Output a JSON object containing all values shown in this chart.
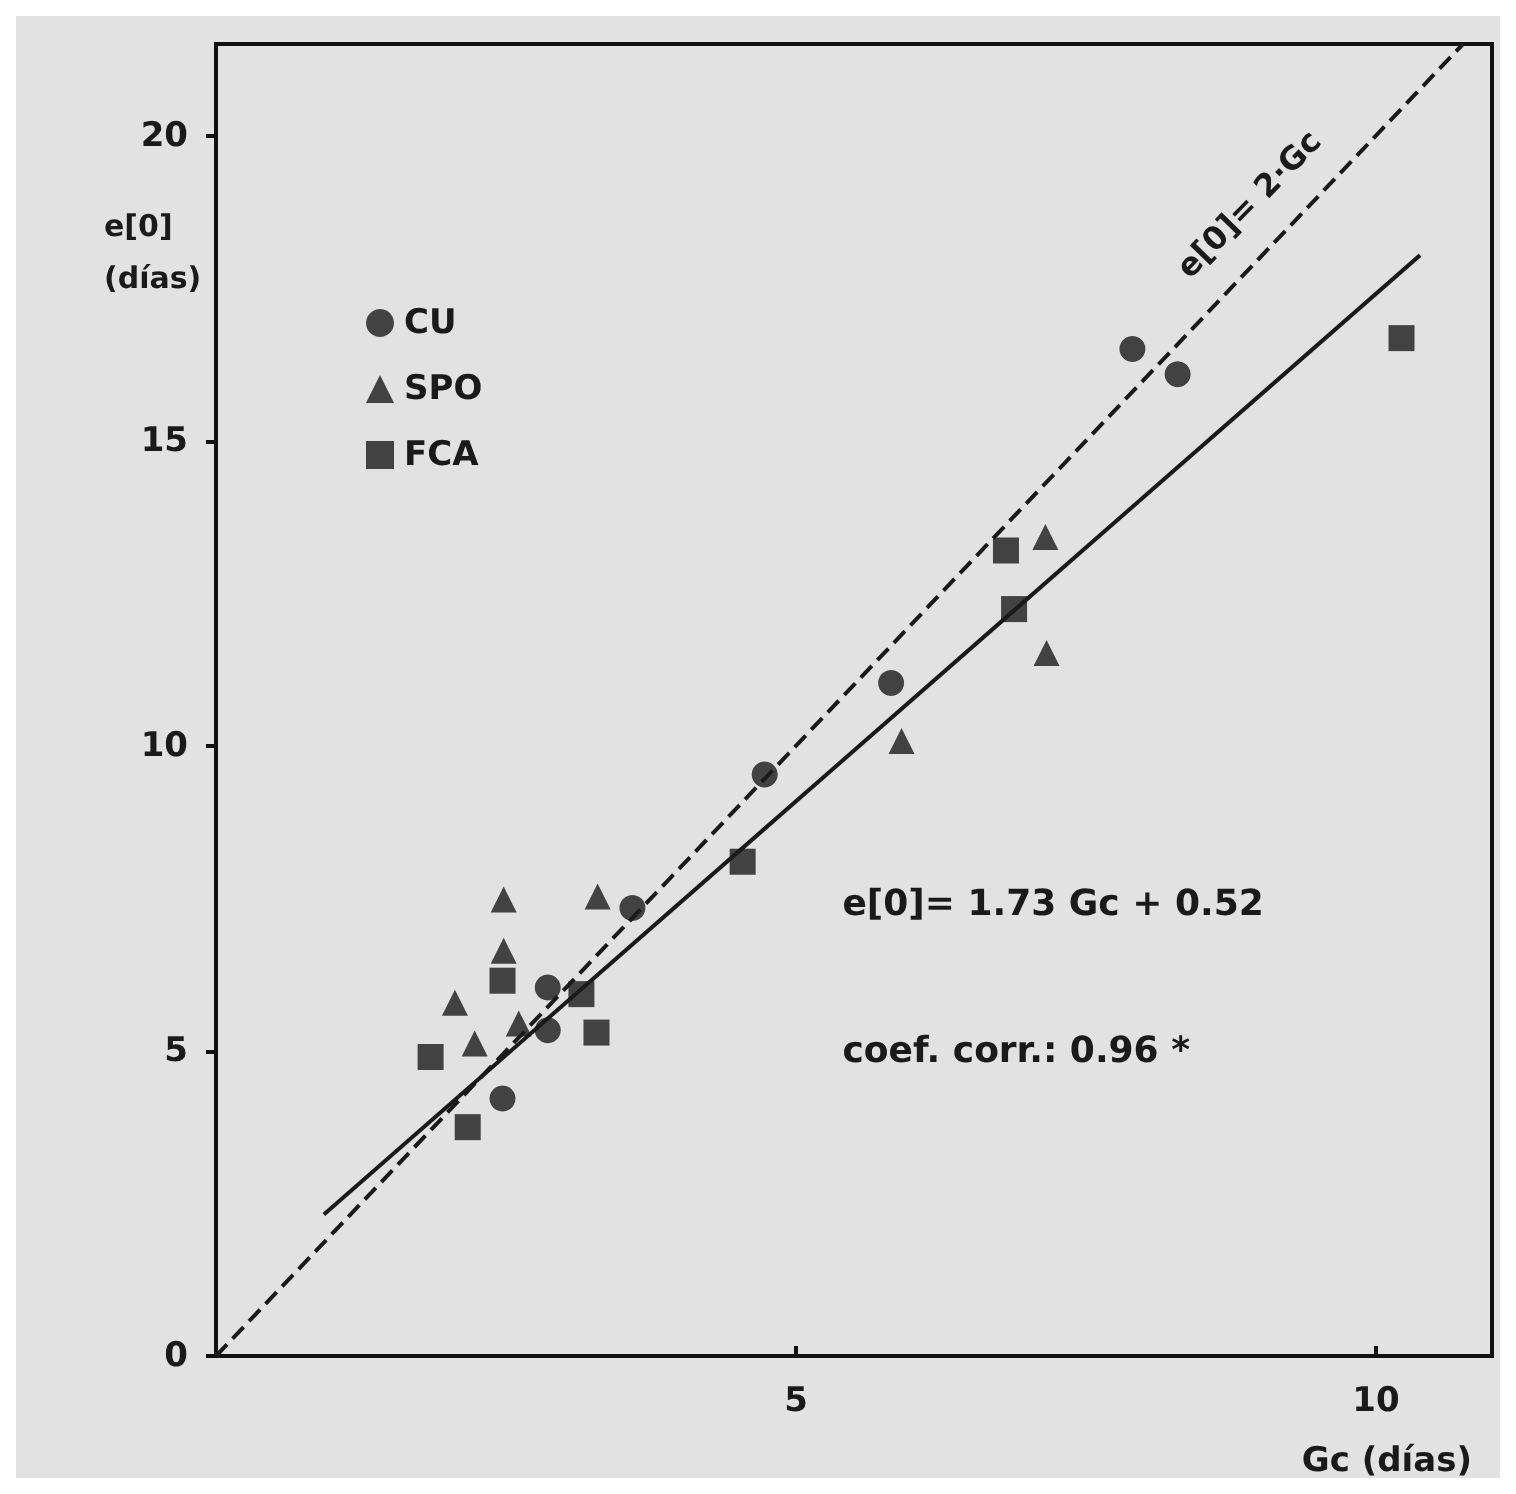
{
  "chart_data": {
    "type": "scatter",
    "xlabel": "Gc (días)",
    "ylabel": "e[0]\n(días)",
    "xlim": [
      0,
      11
    ],
    "ylim": [
      0,
      21.5
    ],
    "xticks": [
      5,
      10
    ],
    "yticks": [
      0,
      5,
      10,
      15,
      20
    ],
    "grid": false,
    "legend": "top left",
    "series": [
      {
        "name": "CU",
        "color": "#1a1a1a",
        "marker": "circle",
        "x": [
          2.47,
          2.86,
          2.86,
          3.59,
          4.73,
          5.82,
          7.9,
          8.29
        ],
        "values": [
          4.22,
          5.34,
          6.04,
          7.34,
          9.53,
          11.03,
          16.5,
          16.09
        ]
      },
      {
        "name": "SPO",
        "color": "#1a1a1a",
        "marker": "triangle",
        "x": [
          2.48,
          3.29,
          2.48,
          2.06,
          2.23,
          2.61,
          5.91,
          7.15,
          7.16
        ],
        "values": [
          7.48,
          7.53,
          6.64,
          5.79,
          5.12,
          5.45,
          10.08,
          13.42,
          11.52
        ]
      },
      {
        "name": "FCA",
        "color": "#1a1a1a",
        "marker": "square",
        "x": [
          1.85,
          2.17,
          2.47,
          3.15,
          3.28,
          4.54,
          6.81,
          6.88,
          10.22
        ],
        "values": [
          4.9,
          3.75,
          6.15,
          5.93,
          5.3,
          8.1,
          13.2,
          12.24,
          16.68
        ]
      },
      {
        "type": "line",
        "color": "#1a1a1a",
        "marker": "none",
        "line_style": "solid",
        "x": [
          0.93,
          10.38
        ],
        "values": [
          2.32,
          18.04
        ]
      },
      {
        "type": "line",
        "color": "#1a1a1a",
        "marker": "none",
        "line_style": "dashed",
        "x": [
          0,
          10.75
        ],
        "values": [
          0,
          21.5
        ]
      }
    ],
    "annotations": [
      "e[0]= 2·Gc",
      "e[0]= 1.73 Gc + 0.52",
      "coef. corr.: 0.96 *"
    ]
  }
}
